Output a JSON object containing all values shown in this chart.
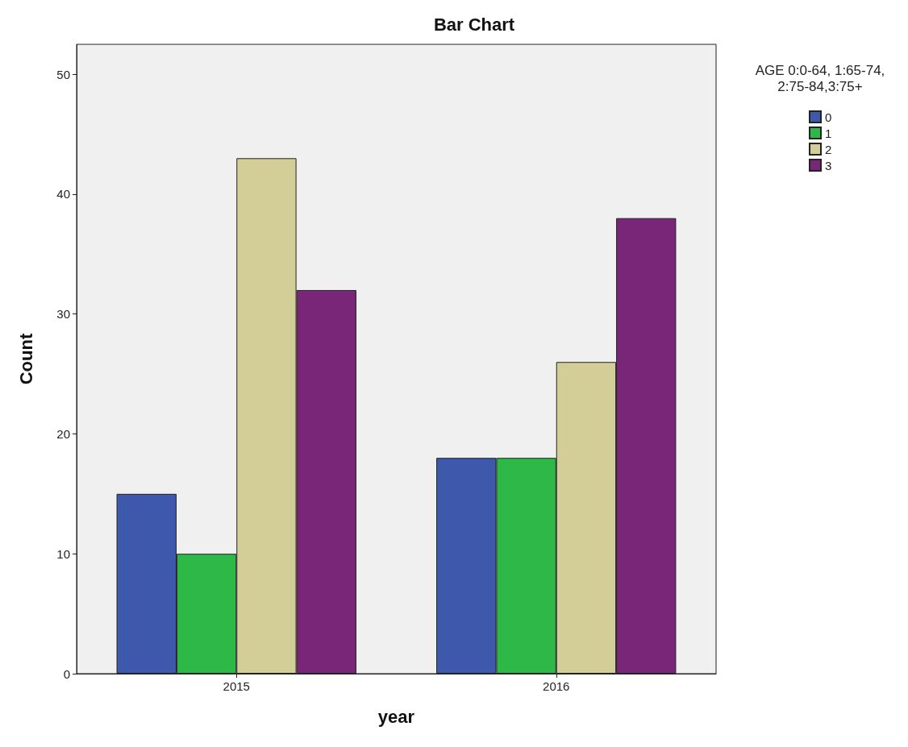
{
  "chart_data": {
    "type": "bar",
    "title": "Bar Chart",
    "xlabel": "year",
    "ylabel": "Count",
    "legend_title": "AGE 0:0-64, 1:65-74,2:75-84,3:75+",
    "categories": [
      "2015",
      "2016"
    ],
    "series": [
      {
        "name": "0",
        "color": "#3e58ac",
        "values": [
          15,
          18
        ]
      },
      {
        "name": "1",
        "color": "#2eb848",
        "values": [
          10,
          18
        ]
      },
      {
        "name": "2",
        "color": "#d3ce97",
        "values": [
          43,
          26
        ]
      },
      {
        "name": "3",
        "color": "#7a2678",
        "values": [
          32,
          38
        ]
      }
    ],
    "ylim": [
      0,
      52.5
    ],
    "yticks": [
      0,
      10,
      20,
      30,
      40,
      50
    ],
    "grid": false,
    "legend": "top right"
  }
}
